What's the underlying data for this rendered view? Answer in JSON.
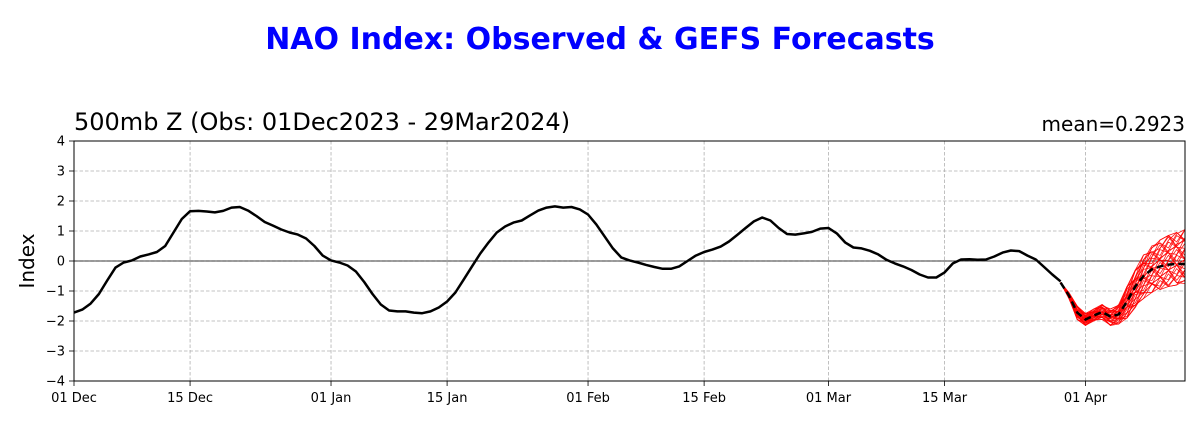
{
  "figure": {
    "suptitle": "NAO Index: Observed & GEFS Forecasts",
    "subtitle": "500mb Z (Obs: 01Dec2023 - 29Mar2024)",
    "mean_label": "mean=0.2923"
  },
  "chart_data": {
    "type": "line",
    "title": "500mb Z (Obs: 01Dec2023 - 29Mar2024)",
    "xlabel": "",
    "ylabel": "Index",
    "xlim": [
      "2023-12-01",
      "2024-04-13"
    ],
    "ylim": [
      -4,
      4
    ],
    "yticks": [
      -4,
      -3,
      -2,
      -1,
      0,
      1,
      2,
      3,
      4
    ],
    "xticks": [
      {
        "date": "2023-12-01",
        "label": "01 Dec"
      },
      {
        "date": "2023-12-15",
        "label": "15 Dec"
      },
      {
        "date": "2024-01-01",
        "label": "01 Jan"
      },
      {
        "date": "2024-01-15",
        "label": "15 Jan"
      },
      {
        "date": "2024-02-01",
        "label": "01 Feb"
      },
      {
        "date": "2024-02-15",
        "label": "15 Feb"
      },
      {
        "date": "2024-03-01",
        "label": "01 Mar"
      },
      {
        "date": "2024-03-15",
        "label": "15 Mar"
      },
      {
        "date": "2024-04-01",
        "label": "01 Apr"
      }
    ],
    "grid": true,
    "colors": {
      "observed": "#000000",
      "members": "#ff0000",
      "ensemble_mean": "#000000",
      "title": "#0000ff"
    },
    "observed": {
      "x": [
        "2023-12-01",
        "2023-12-02",
        "2023-12-03",
        "2023-12-04",
        "2023-12-05",
        "2023-12-06",
        "2023-12-07",
        "2023-12-08",
        "2023-12-09",
        "2023-12-10",
        "2023-12-11",
        "2023-12-12",
        "2023-12-13",
        "2023-12-14",
        "2023-12-15",
        "2023-12-16",
        "2023-12-17",
        "2023-12-18",
        "2023-12-19",
        "2023-12-20",
        "2023-12-21",
        "2023-12-22",
        "2023-12-23",
        "2023-12-24",
        "2023-12-25",
        "2023-12-26",
        "2023-12-27",
        "2023-12-28",
        "2023-12-29",
        "2023-12-30",
        "2023-12-31",
        "2024-01-01",
        "2024-01-02",
        "2024-01-03",
        "2024-01-04",
        "2024-01-05",
        "2024-01-06",
        "2024-01-07",
        "2024-01-08",
        "2024-01-09",
        "2024-01-10",
        "2024-01-11",
        "2024-01-12",
        "2024-01-13",
        "2024-01-14",
        "2024-01-15",
        "2024-01-16",
        "2024-01-17",
        "2024-01-18",
        "2024-01-19",
        "2024-01-20",
        "2024-01-21",
        "2024-01-22",
        "2024-01-23",
        "2024-01-24",
        "2024-01-25",
        "2024-01-26",
        "2024-01-27",
        "2024-01-28",
        "2024-01-29",
        "2024-01-30",
        "2024-01-31",
        "2024-02-01",
        "2024-02-02",
        "2024-02-03",
        "2024-02-04",
        "2024-02-05",
        "2024-02-06",
        "2024-02-07",
        "2024-02-08",
        "2024-02-09",
        "2024-02-10",
        "2024-02-11",
        "2024-02-12",
        "2024-02-13",
        "2024-02-14",
        "2024-02-15",
        "2024-02-16",
        "2024-02-17",
        "2024-02-18",
        "2024-02-19",
        "2024-02-20",
        "2024-02-21",
        "2024-02-22",
        "2024-02-23",
        "2024-02-24",
        "2024-02-25",
        "2024-02-26",
        "2024-02-27",
        "2024-02-28",
        "2024-02-29",
        "2024-03-01",
        "2024-03-02",
        "2024-03-03",
        "2024-03-04",
        "2024-03-05",
        "2024-03-06",
        "2024-03-07",
        "2024-03-08",
        "2024-03-09",
        "2024-03-10",
        "2024-03-11",
        "2024-03-12",
        "2024-03-13",
        "2024-03-14",
        "2024-03-15",
        "2024-03-16",
        "2024-03-17",
        "2024-03-18",
        "2024-03-19",
        "2024-03-20",
        "2024-03-21",
        "2024-03-22",
        "2024-03-23",
        "2024-03-24",
        "2024-03-25",
        "2024-03-26",
        "2024-03-27",
        "2024-03-28",
        "2024-03-29"
      ],
      "y": [
        -1.72,
        -1.62,
        -1.42,
        -1.1,
        -0.65,
        -0.22,
        -0.05,
        0.02,
        0.15,
        0.22,
        0.3,
        0.5,
        0.95,
        1.4,
        1.66,
        1.67,
        1.65,
        1.62,
        1.67,
        1.78,
        1.8,
        1.68,
        1.5,
        1.3,
        1.18,
        1.05,
        0.95,
        0.88,
        0.75,
        0.5,
        0.18,
        0.02,
        -0.05,
        -0.15,
        -0.35,
        -0.7,
        -1.1,
        -1.45,
        -1.65,
        -1.68,
        -1.68,
        -1.72,
        -1.74,
        -1.68,
        -1.55,
        -1.35,
        -1.05,
        -0.62,
        -0.18,
        0.25,
        0.62,
        0.95,
        1.15,
        1.28,
        1.35,
        1.52,
        1.68,
        1.78,
        1.82,
        1.78,
        1.8,
        1.72,
        1.55,
        1.22,
        0.82,
        0.42,
        0.12,
        0.02,
        -0.05,
        -0.13,
        -0.2,
        -0.26,
        -0.26,
        -0.18,
        0.0,
        0.18,
        0.3,
        0.38,
        0.48,
        0.65,
        0.87,
        1.1,
        1.32,
        1.45,
        1.35,
        1.1,
        0.9,
        0.88,
        0.92,
        0.97,
        1.08,
        1.1,
        0.92,
        0.62,
        0.45,
        0.42,
        0.34,
        0.22,
        0.04,
        -0.08,
        -0.18,
        -0.3,
        -0.45,
        -0.55,
        -0.55,
        -0.38,
        -0.08,
        0.05,
        0.06,
        0.04,
        0.05,
        0.15,
        0.28,
        0.35,
        0.33,
        0.18,
        0.05,
        -0.2,
        -0.45,
        -0.68
      ]
    },
    "ensemble_mean": {
      "x": [
        "2024-03-29",
        "2024-03-30",
        "2024-03-31",
        "2024-04-01",
        "2024-04-02",
        "2024-04-03",
        "2024-04-04",
        "2024-04-05",
        "2024-04-06",
        "2024-04-07",
        "2024-04-08",
        "2024-04-09",
        "2024-04-10",
        "2024-04-11",
        "2024-04-12",
        "2024-04-13"
      ],
      "y": [
        -0.72,
        -1.15,
        -1.72,
        -1.95,
        -1.82,
        -1.7,
        -1.85,
        -1.78,
        -1.35,
        -0.85,
        -0.5,
        -0.28,
        -0.18,
        -0.12,
        -0.1,
        -0.1
      ]
    },
    "ensemble_members": {
      "count": 31,
      "x_start": "2024-03-29",
      "x_end": "2024-04-13",
      "min_y": [
        -0.72,
        -1.25,
        -1.95,
        -2.15,
        -2.0,
        -1.95,
        -2.15,
        -2.1,
        -1.9,
        -1.55,
        -1.25,
        -1.05,
        -0.95,
        -0.85,
        -0.8,
        -0.75
      ],
      "max_y": [
        -0.72,
        -1.05,
        -1.5,
        -1.75,
        -1.6,
        -1.45,
        -1.6,
        -1.45,
        -0.85,
        -0.3,
        0.2,
        0.5,
        0.7,
        0.85,
        0.95,
        1.05
      ]
    }
  }
}
